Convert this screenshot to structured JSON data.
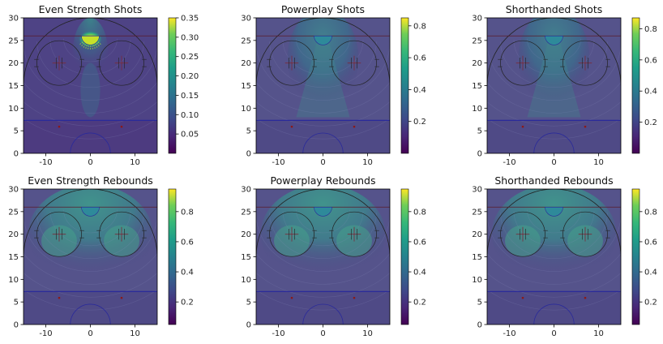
{
  "chart_data": [
    {
      "type": "heatmap",
      "title": "Even Strength Shots",
      "xlim": [
        -15,
        15
      ],
      "ylim": [
        0,
        30
      ],
      "x_ticks": [
        -10,
        0,
        10
      ],
      "y_ticks": [
        0,
        5,
        10,
        15,
        20,
        25,
        30
      ],
      "colorbar": {
        "min": 0,
        "max": 0.35,
        "ticks": [
          0.05,
          0.1,
          0.15,
          0.2,
          0.25,
          0.3,
          0.35
        ],
        "tick_labels": [
          "0.05",
          "0.10",
          "0.15",
          "0.20",
          "0.25",
          "0.30",
          "0.35"
        ],
        "colormap": "viridis"
      },
      "hotspot": {
        "x": 0,
        "y": 25,
        "peak_value": 0.35
      }
    },
    {
      "type": "heatmap",
      "title": "Powerplay Shots",
      "xlim": [
        -15,
        15
      ],
      "ylim": [
        0,
        30
      ],
      "x_ticks": [
        -10,
        0,
        10
      ],
      "y_ticks": [
        0,
        5,
        10,
        15,
        20,
        25,
        30
      ],
      "colorbar": {
        "min": 0,
        "max": 0.85,
        "ticks": [
          0.2,
          0.4,
          0.6,
          0.8
        ],
        "tick_labels": [
          "0.2",
          "0.4",
          "0.6",
          "0.8"
        ],
        "colormap": "viridis"
      }
    },
    {
      "type": "heatmap",
      "title": "Shorthanded Shots",
      "xlim": [
        -15,
        15
      ],
      "ylim": [
        0,
        30
      ],
      "x_ticks": [
        -10,
        0,
        10
      ],
      "y_ticks": [
        0,
        5,
        10,
        15,
        20,
        25,
        30
      ],
      "colorbar": {
        "min": 0,
        "max": 0.87,
        "ticks": [
          0.2,
          0.4,
          0.6,
          0.8
        ],
        "tick_labels": [
          "0.2",
          "0.4",
          "0.6",
          "0.8"
        ],
        "colormap": "viridis"
      }
    },
    {
      "type": "heatmap",
      "title": "Even Strength Rebounds",
      "xlim": [
        -15,
        15
      ],
      "ylim": [
        0,
        30
      ],
      "x_ticks": [
        -10,
        0,
        10
      ],
      "y_ticks": [
        0,
        5,
        10,
        15,
        20,
        25,
        30
      ],
      "colorbar": {
        "min": 0.05,
        "max": 0.95,
        "ticks": [
          0.2,
          0.4,
          0.6,
          0.8
        ],
        "tick_labels": [
          "0.2",
          "0.4",
          "0.6",
          "0.8"
        ],
        "colormap": "viridis"
      }
    },
    {
      "type": "heatmap",
      "title": "Powerplay Rebounds",
      "xlim": [
        -15,
        15
      ],
      "ylim": [
        0,
        30
      ],
      "x_ticks": [
        -10,
        0,
        10
      ],
      "y_ticks": [
        0,
        5,
        10,
        15,
        20,
        25,
        30
      ],
      "colorbar": {
        "min": 0.05,
        "max": 0.95,
        "ticks": [
          0.2,
          0.4,
          0.6,
          0.8
        ],
        "tick_labels": [
          "0.2",
          "0.4",
          "0.6",
          "0.8"
        ],
        "colormap": "viridis"
      }
    },
    {
      "type": "heatmap",
      "title": "Shorthanded Rebounds",
      "xlim": [
        -15,
        15
      ],
      "ylim": [
        0,
        30
      ],
      "x_ticks": [
        -10,
        0,
        10
      ],
      "y_ticks": [
        0,
        5,
        10,
        15,
        20,
        25,
        30
      ],
      "colorbar": {
        "min": 0.05,
        "max": 0.95,
        "ticks": [
          0.2,
          0.4,
          0.6,
          0.8
        ],
        "tick_labels": [
          "0.2",
          "0.4",
          "0.6",
          "0.8"
        ],
        "colormap": "viridis"
      }
    }
  ],
  "colors": {
    "background": "#ffffff",
    "rink_lines": "#222222",
    "blue_line": "#2a2a9a",
    "dots": "#8b1a1a",
    "viridis_low": "#440154",
    "viridis_mid": "#21918c",
    "viridis_high": "#fde725"
  }
}
